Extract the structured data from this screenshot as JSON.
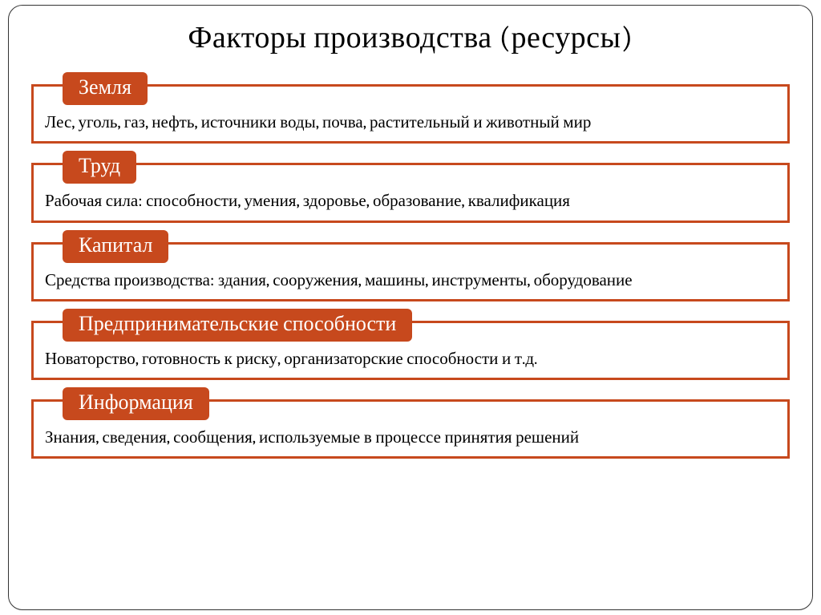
{
  "title": "Факторы производства (ресурсы)",
  "style": {
    "accent": "#c7491d",
    "border_color": "#c7491d",
    "tab_bg": "#c7491d",
    "tab_text": "#ffffff",
    "title_fontsize": 38,
    "tab_fontsize": 26,
    "desc_fontsize": 21,
    "frame_border_color": "#333333",
    "frame_radius": 18,
    "background": "#ffffff"
  },
  "items": [
    {
      "label": "Земля",
      "desc": "Лес, уголь, газ, нефть, источники воды, почва, растительный и животный мир"
    },
    {
      "label": "Труд",
      "desc": "Рабочая сила: способности, умения, здоровье, образование, квалификация"
    },
    {
      "label": "Капитал",
      "desc": "Средства производства: здания, сооружения, машины, инструменты, оборудование"
    },
    {
      "label": "Предпринимательские способности",
      "desc": "Новаторство, готовность к риску, организаторские способности и т.д."
    },
    {
      "label": "Информация",
      "desc": "Знания, сведения, сообщения, используемые в процессе принятия решений"
    }
  ]
}
